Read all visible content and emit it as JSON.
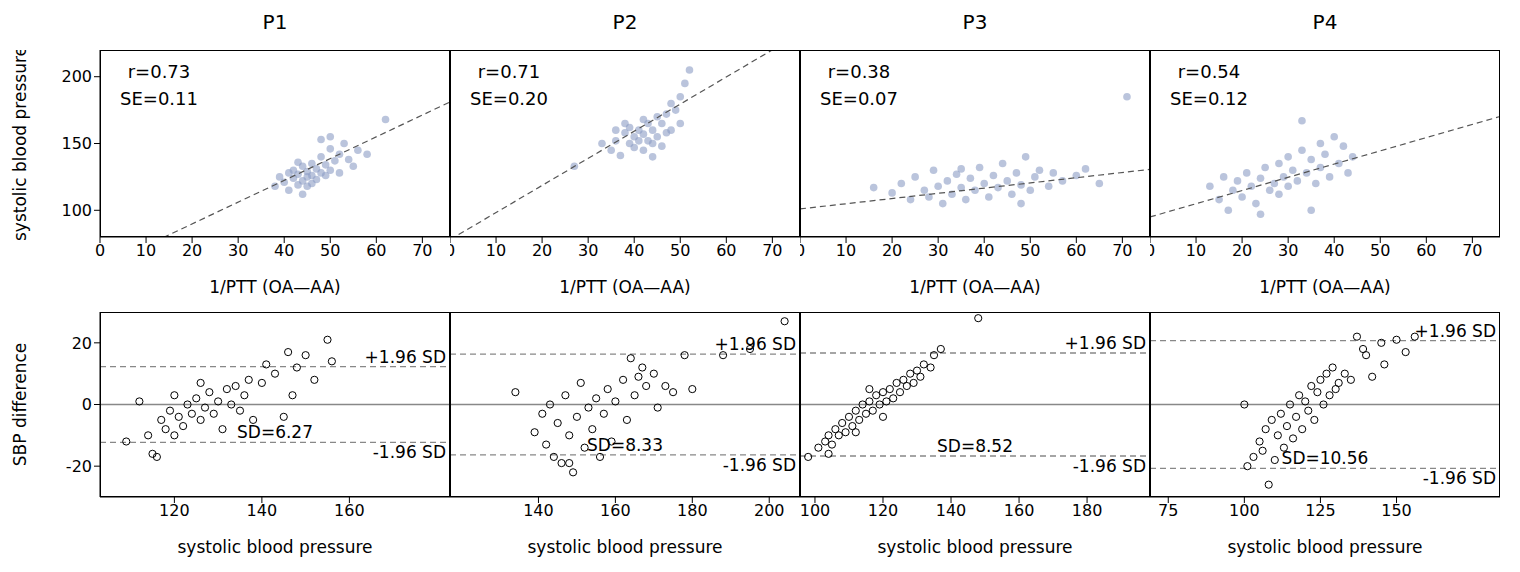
{
  "chart_data": [
    {
      "type": "scatter",
      "title": "P1",
      "x_label": "1/PTT (OA—AA)",
      "y_label": "systolic blood pressure",
      "xlim": [
        0,
        76
      ],
      "ylim": [
        80,
        220
      ],
      "xticks": [
        0,
        10,
        20,
        30,
        40,
        50,
        60,
        70
      ],
      "yticks": [
        100,
        150,
        200
      ],
      "color": "#8c9dc5",
      "marker": "circle",
      "x": [
        38,
        40,
        41,
        42,
        42,
        43,
        43,
        44,
        44,
        45,
        45,
        45,
        46,
        46,
        47,
        47,
        48,
        48,
        49,
        49,
        50,
        50,
        51,
        52,
        52,
        53,
        54,
        55,
        56,
        58,
        62,
        44,
        46,
        48,
        50,
        39,
        41,
        43
      ],
      "values": [
        118,
        121,
        115,
        124,
        130,
        119,
        127,
        122,
        133,
        125,
        129,
        118,
        126,
        135,
        123,
        131,
        128,
        140,
        126,
        134,
        130,
        146,
        137,
        128,
        142,
        150,
        138,
        133,
        145,
        142,
        168,
        112,
        120,
        153,
        155,
        125,
        128,
        136
      ],
      "fit": {
        "slope": 1.63,
        "intercept": 57.2,
        "line_style": "dashed"
      },
      "annotations": [
        "r=0.73",
        "SE=0.11"
      ]
    },
    {
      "type": "scatter",
      "title": "P2",
      "x_label": "1/PTT (OA—AA)",
      "xlim": [
        0,
        76
      ],
      "ylim": [
        80,
        220
      ],
      "xticks": [
        0,
        10,
        20,
        30,
        40,
        50,
        60,
        70
      ],
      "yticks": [
        100,
        150,
        200
      ],
      "tick_labels": "x",
      "color": "#8c9dc5",
      "marker": "circle",
      "x": [
        27,
        33,
        35,
        36,
        37,
        38,
        39,
        39,
        40,
        40,
        41,
        41,
        42,
        42,
        43,
        43,
        44,
        44,
        45,
        45,
        46,
        46,
        47,
        47,
        48,
        48,
        49,
        50,
        50,
        51,
        52,
        38,
        42,
        44,
        36
      ],
      "values": [
        133,
        150,
        145,
        152,
        141,
        158,
        150,
        162,
        147,
        155,
        160,
        152,
        145,
        157,
        165,
        152,
        150,
        160,
        170,
        155,
        148,
        165,
        172,
        158,
        160,
        180,
        175,
        165,
        185,
        195,
        205,
        165,
        168,
        140,
        160
      ],
      "fit": {
        "slope": 2.03,
        "intercept": 78,
        "line_style": "dashed"
      },
      "annotations": [
        "r=0.71",
        "SE=0.20"
      ]
    },
    {
      "type": "scatter",
      "title": "P3",
      "x_label": "1/PTT (OA—AA)",
      "xlim": [
        0,
        76
      ],
      "ylim": [
        80,
        220
      ],
      "xticks": [
        0,
        10,
        20,
        30,
        40,
        50,
        60,
        70
      ],
      "yticks": [
        100,
        150,
        200
      ],
      "tick_labels": "x",
      "color": "#8c9dc5",
      "marker": "circle",
      "x": [
        16,
        20,
        22,
        24,
        25,
        27,
        28,
        29,
        30,
        31,
        32,
        33,
        34,
        35,
        36,
        37,
        38,
        39,
        40,
        41,
        42,
        43,
        44,
        45,
        46,
        47,
        48,
        49,
        50,
        51,
        52,
        54,
        55,
        57,
        60,
        62,
        65,
        71,
        48,
        35
      ],
      "values": [
        117,
        113,
        120,
        108,
        125,
        115,
        110,
        130,
        118,
        105,
        122,
        112,
        127,
        117,
        108,
        124,
        115,
        132,
        120,
        110,
        126,
        117,
        135,
        122,
        112,
        128,
        119,
        140,
        115,
        125,
        130,
        118,
        128,
        122,
        126,
        131,
        120,
        185,
        105,
        131
      ],
      "fit": {
        "slope": 0.39,
        "intercept": 101,
        "line_style": "dashed"
      },
      "annotations": [
        "r=0.38",
        "SE=0.07"
      ]
    },
    {
      "type": "scatter",
      "title": "P4",
      "x_label": "1/PTT (OA—AA)",
      "xlim": [
        0,
        76
      ],
      "ylim": [
        80,
        220
      ],
      "xticks": [
        0,
        10,
        20,
        30,
        40,
        50,
        60,
        70
      ],
      "yticks": [
        100,
        150,
        200
      ],
      "tick_labels": "x",
      "color": "#8c9dc5",
      "marker": "circle",
      "x": [
        13,
        15,
        16,
        17,
        18,
        19,
        20,
        21,
        22,
        23,
        24,
        25,
        26,
        27,
        28,
        28,
        29,
        30,
        30,
        31,
        32,
        33,
        33,
        34,
        35,
        36,
        37,
        37,
        38,
        39,
        40,
        41,
        42,
        43,
        44,
        35,
        24
      ],
      "values": [
        118,
        108,
        125,
        100,
        115,
        122,
        110,
        128,
        118,
        105,
        124,
        132,
        115,
        120,
        135,
        112,
        125,
        140,
        118,
        130,
        122,
        145,
        167,
        128,
        138,
        120,
        150,
        132,
        142,
        125,
        155,
        135,
        148,
        128,
        140,
        100,
        97
      ],
      "fit": {
        "slope": 0.99,
        "intercept": 95,
        "line_style": "dashed"
      },
      "annotations": [
        "r=0.54",
        "SE=0.12"
      ]
    },
    {
      "type": "scatter",
      "x_label": "systolic blood pressure",
      "y_label": "SBP difference",
      "xlim": [
        103,
        183
      ],
      "ylim": [
        -30,
        30
      ],
      "xticks": [
        120,
        140,
        160
      ],
      "yticks": [
        -20,
        0,
        20
      ],
      "color": "#000000",
      "marker": "open_circle",
      "x": [
        109,
        112,
        114,
        115,
        116,
        117,
        118,
        119,
        120,
        121,
        122,
        123,
        124,
        125,
        126,
        127,
        128,
        129,
        130,
        131,
        132,
        133,
        134,
        135,
        136,
        137,
        138,
        140,
        141,
        143,
        145,
        146,
        147,
        148,
        150,
        152,
        155,
        156,
        120,
        126
      ],
      "values": [
        -12,
        1,
        -10,
        -16,
        -17,
        -5,
        -8,
        -2,
        3,
        -4,
        -7,
        0,
        -3,
        2,
        -5,
        -1,
        4,
        -3,
        1,
        -8,
        5,
        0,
        6,
        -2,
        3,
        8,
        -5,
        7,
        13,
        10,
        -4,
        17,
        3,
        12,
        16,
        8,
        21,
        14,
        -10,
        7
      ],
      "reference_lines": [
        {
          "y": 0,
          "line_style": "solid"
        },
        {
          "y": 12.29,
          "line_style": "dashed",
          "label": "+1.96 SD"
        },
        {
          "y": -12.29,
          "line_style": "dashed",
          "label": "-1.96 SD"
        }
      ],
      "annotations": [
        "SD=6.27"
      ]
    },
    {
      "type": "scatter",
      "x_label": "systolic blood pressure",
      "xlim": [
        117,
        208
      ],
      "ylim": [
        -30,
        30
      ],
      "xticks": [
        140,
        160,
        180,
        200
      ],
      "yticks": [
        -20,
        0,
        20
      ],
      "tick_labels": "x",
      "color": "#000000",
      "marker": "open_circle",
      "x": [
        134,
        139,
        141,
        142,
        143,
        144,
        145,
        146,
        147,
        148,
        149,
        150,
        151,
        152,
        153,
        154,
        155,
        156,
        157,
        158,
        159,
        160,
        162,
        163,
        164,
        165,
        166,
        167,
        168,
        170,
        171,
        173,
        175,
        178,
        180,
        188,
        195,
        204,
        148
      ],
      "values": [
        4,
        -9,
        -3,
        -13,
        0,
        -17,
        -6,
        -19,
        3,
        -10,
        -22,
        -4,
        7,
        -14,
        -1,
        -8,
        2,
        -17,
        -3,
        5,
        -12,
        1,
        8,
        -5,
        15,
        3,
        9,
        12,
        6,
        10,
        -1,
        6,
        4,
        16,
        5,
        16,
        18,
        27,
        -19
      ],
      "reference_lines": [
        {
          "y": 0,
          "line_style": "solid"
        },
        {
          "y": 16.33,
          "line_style": "dashed",
          "label": "+1.96 SD"
        },
        {
          "y": -16.33,
          "line_style": "dashed",
          "label": "-1.96 SD"
        }
      ],
      "annotations": [
        "SD=8.33"
      ]
    },
    {
      "type": "scatter",
      "x_label": "systolic blood pressure",
      "xlim": [
        95.6,
        198.5
      ],
      "ylim": [
        -30,
        30
      ],
      "xticks": [
        100,
        120,
        140,
        160,
        180
      ],
      "yticks": [
        -20,
        0,
        20
      ],
      "tick_labels": "x",
      "color": "#000000",
      "marker": "open_circle",
      "x": [
        98,
        101,
        103,
        104,
        105,
        106,
        107,
        108,
        109,
        110,
        111,
        112,
        113,
        114,
        115,
        116,
        117,
        118,
        119,
        120,
        121,
        122,
        123,
        124,
        125,
        126,
        127,
        128,
        129,
        130,
        131,
        132,
        134,
        135,
        137,
        148,
        112,
        120,
        116,
        104
      ],
      "values": [
        -17,
        -14,
        -12,
        -10,
        -13,
        -8,
        -10,
        -6,
        -9,
        -4,
        -7,
        -2,
        -5,
        0,
        -3,
        1,
        -2,
        3,
        0,
        4,
        1,
        5,
        2,
        7,
        4,
        8,
        6,
        10,
        7,
        11,
        9,
        13,
        12,
        16,
        18,
        28,
        -9,
        -4,
        5,
        -16
      ],
      "reference_lines": [
        {
          "y": 0,
          "line_style": "solid"
        },
        {
          "y": 16.7,
          "line_style": "dashed",
          "label": "+1.96 SD"
        },
        {
          "y": -16.7,
          "line_style": "dashed",
          "label": "-1.96 SD"
        }
      ],
      "annotations": [
        "SD=8.52"
      ]
    },
    {
      "type": "scatter",
      "x_label": "systolic blood pressure",
      "xlim": [
        69,
        184
      ],
      "ylim": [
        -30,
        30
      ],
      "xticks": [
        75,
        100,
        125,
        150
      ],
      "yticks": [
        -20,
        0,
        20
      ],
      "tick_labels": "x",
      "color": "#000000",
      "marker": "open_circle",
      "x": [
        100,
        101,
        103,
        105,
        106,
        107,
        108,
        109,
        110,
        111,
        112,
        113,
        114,
        115,
        116,
        117,
        118,
        119,
        120,
        121,
        122,
        123,
        124,
        125,
        126,
        127,
        128,
        129,
        130,
        131,
        133,
        135,
        137,
        139,
        140,
        142,
        145,
        146,
        150,
        153,
        156
      ],
      "values": [
        0,
        -20,
        -17,
        -12,
        -15,
        -8,
        -26,
        -5,
        -18,
        -10,
        -3,
        -14,
        -7,
        0,
        -11,
        -4,
        3,
        -8,
        1,
        -2,
        6,
        -5,
        4,
        8,
        0,
        10,
        3,
        12,
        5,
        7,
        10,
        8,
        22,
        18,
        16,
        9,
        20,
        13,
        21,
        17,
        22
      ],
      "reference_lines": [
        {
          "y": 0,
          "line_style": "solid"
        },
        {
          "y": 20.7,
          "line_style": "dashed",
          "label": "+1.96 SD"
        },
        {
          "y": -20.7,
          "line_style": "dashed",
          "label": "-1.96 SD"
        }
      ],
      "annotations": [
        "SD=10.56"
      ]
    }
  ]
}
